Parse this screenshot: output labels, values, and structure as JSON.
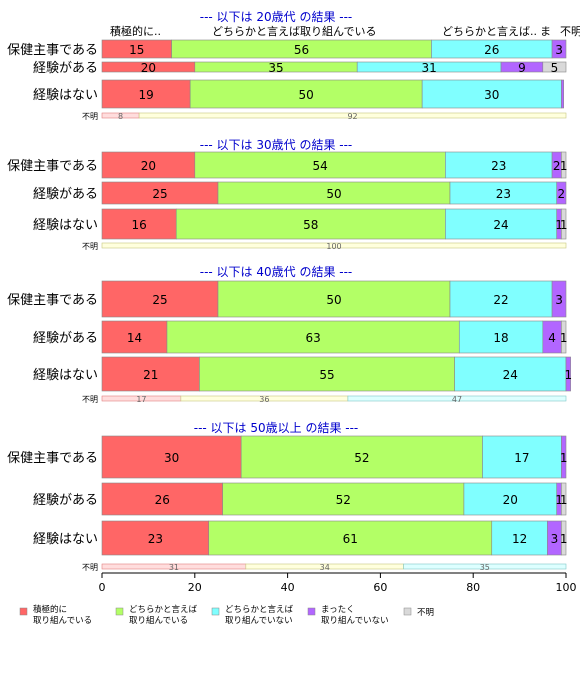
{
  "colors": {
    "active": "#FF6666",
    "somewhat_active": "#B3FF66",
    "somewhat_inactive": "#80FFFF",
    "inactive": "#B266FF",
    "unknown": "#D9D9D9",
    "group_title": "#0000CC"
  },
  "column_headers": [
    "積極的に..",
    "どちらかと言えば取り組んでいる",
    "どちらかと言えば..",
    "ま",
    "不明"
  ],
  "chart_data": {
    "type": "bar",
    "stacked": true,
    "orientation": "horizontal",
    "xlim": [
      0,
      100
    ],
    "xticks": [
      0,
      20,
      40,
      60,
      80,
      100
    ],
    "series_names": [
      "積極的に\n取り組んでいる",
      "どちらかと言えば\n取り組んでいる",
      "どちらかと言えば\n取り組んでいない",
      "まったく\n取り組んでいない",
      "不明"
    ],
    "groups": [
      {
        "title": "--- 以下は 20歳代 の結果 ---",
        "rows": [
          {
            "label": "保健主事である",
            "values": [
              15,
              56,
              26,
              3,
              0
            ],
            "labels": [
              "15",
              "56",
              "26",
              "3",
              ""
            ]
          },
          {
            "label": "経験がある",
            "values": [
              20,
              35,
              31,
              9,
              5
            ],
            "labels": [
              "20",
              "35",
              "31",
              "9",
              "5"
            ]
          },
          {
            "label": "経験はない",
            "values": [
              19,
              50,
              30,
              0.5,
              0
            ],
            "labels": [
              "19",
              "50",
              "30",
              "",
              ""
            ]
          }
        ],
        "unknown_label": "不明",
        "unknown": [
          8,
          92,
          0
        ],
        "unknown_labels": [
          "8",
          "92",
          ""
        ]
      },
      {
        "title": "--- 以下は 30歳代 の結果 ---",
        "rows": [
          {
            "label": "保健主事である",
            "values": [
              20,
              54,
              23,
              2,
              1
            ],
            "labels": [
              "20",
              "54",
              "23",
              "2",
              "1"
            ]
          },
          {
            "label": "経験がある",
            "values": [
              25,
              50,
              23,
              2,
              0
            ],
            "labels": [
              "25",
              "50",
              "23",
              "2",
              ""
            ]
          },
          {
            "label": "経験はない",
            "values": [
              16,
              58,
              24,
              1,
              1
            ],
            "labels": [
              "16",
              "58",
              "24",
              "1",
              "1"
            ]
          }
        ],
        "unknown_label": "不明",
        "unknown": [
          0,
          100,
          0
        ],
        "unknown_labels": [
          "",
          "100",
          ""
        ]
      },
      {
        "title": "--- 以下は 40歳代 の結果 ---",
        "rows": [
          {
            "label": "保健主事である",
            "values": [
              25,
              50,
              22,
              3,
              0
            ],
            "labels": [
              "25",
              "50",
              "22",
              "3",
              ""
            ]
          },
          {
            "label": "経験がある",
            "values": [
              14,
              63,
              18,
              4,
              1
            ],
            "labels": [
              "14",
              "63",
              "18",
              "4",
              "1"
            ]
          },
          {
            "label": "経験はない",
            "values": [
              21,
              55,
              24,
              1,
              0
            ],
            "labels": [
              "21",
              "55",
              "24",
              "1",
              ""
            ]
          }
        ],
        "unknown_label": "不明",
        "unknown": [
          17,
          36,
          47
        ],
        "unknown_labels": [
          "17",
          "36",
          "47"
        ]
      },
      {
        "title": "--- 以下は 50歳以上 の結果 ---",
        "rows": [
          {
            "label": "保健主事である",
            "values": [
              30,
              52,
              17,
              1,
              0
            ],
            "labels": [
              "30",
              "52",
              "17",
              "1",
              ""
            ]
          },
          {
            "label": "経験がある",
            "values": [
              26,
              52,
              20,
              1,
              1
            ],
            "labels": [
              "26",
              "52",
              "20",
              "1",
              "1"
            ]
          },
          {
            "label": "経験はない",
            "values": [
              23,
              61,
              12,
              3,
              1
            ],
            "labels": [
              "23",
              "61",
              "12",
              "3",
              "1"
            ]
          }
        ],
        "unknown_label": "不明",
        "unknown": [
          31,
          34,
          35
        ],
        "unknown_labels": [
          "31",
          "34",
          "35"
        ]
      }
    ]
  }
}
